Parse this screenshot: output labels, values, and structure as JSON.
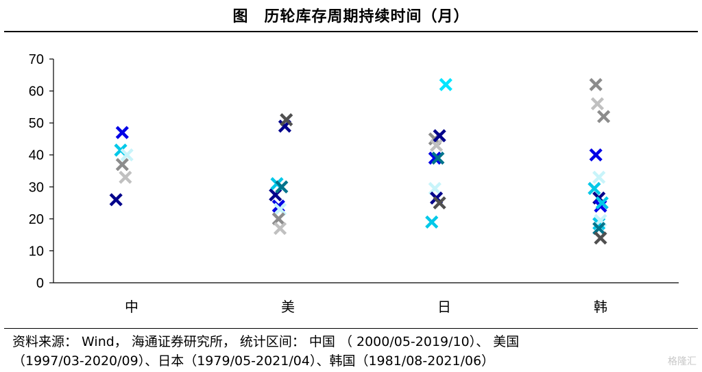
{
  "title": "图　历轮库存周期持续时间（月）",
  "source_line1": "资料来源： Wind， 海通证券研究所， 统计区间： 中国 （ 2000/05-2019/10）、 美国",
  "source_line2": "（1997/03-2020/09）、日本（1979/05-2021/04）、韩国（1981/08-2021/06）",
  "watermark": "格隆汇",
  "chart_data": {
    "type": "scatter",
    "title": "图　历轮库存周期持续时间（月）",
    "xlabel": "",
    "ylabel": "",
    "categories": [
      "中",
      "美",
      "日",
      "韩"
    ],
    "ylim": [
      0,
      70
    ],
    "yticks": [
      0,
      10,
      20,
      30,
      40,
      50,
      60,
      70
    ],
    "grid": false,
    "legend": "none",
    "marker": "x",
    "points": [
      {
        "cat": 0,
        "off": -0.1,
        "y": 26,
        "color": "#00008B"
      },
      {
        "cat": 0,
        "off": -0.06,
        "y": 47,
        "color": "#0000E6"
      },
      {
        "cat": 0,
        "off": -0.07,
        "y": 41.5,
        "color": "#00C8E8"
      },
      {
        "cat": 0,
        "off": -0.03,
        "y": 40,
        "color": "#C8F4FA"
      },
      {
        "cat": 0,
        "off": -0.06,
        "y": 37,
        "color": "#8C8C8C"
      },
      {
        "cat": 0,
        "off": -0.04,
        "y": 33,
        "color": "#C0C0C0"
      },
      {
        "cat": 1,
        "off": -0.08,
        "y": 27.5,
        "color": "#00008B"
      },
      {
        "cat": 1,
        "off": -0.06,
        "y": 24,
        "color": "#0000E6"
      },
      {
        "cat": 1,
        "off": -0.07,
        "y": 31,
        "color": "#00C8E8"
      },
      {
        "cat": 1,
        "off": -0.04,
        "y": 30,
        "color": "#00738C"
      },
      {
        "cat": 1,
        "off": -0.05,
        "y": 23,
        "color": "#C8F4FA"
      },
      {
        "cat": 1,
        "off": -0.06,
        "y": 20,
        "color": "#8C8C8C"
      },
      {
        "cat": 1,
        "off": -0.05,
        "y": 17,
        "color": "#C0C0C0"
      },
      {
        "cat": 1,
        "off": -0.02,
        "y": 49,
        "color": "#00008B"
      },
      {
        "cat": 1,
        "off": -0.01,
        "y": 51,
        "color": "#505050"
      },
      {
        "cat": 2,
        "off": -0.08,
        "y": 19,
        "color": "#00C8E8"
      },
      {
        "cat": 2,
        "off": -0.06,
        "y": 39,
        "color": "#0000E6"
      },
      {
        "cat": 2,
        "off": -0.06,
        "y": 29.5,
        "color": "#C8F4FA"
      },
      {
        "cat": 2,
        "off": -0.05,
        "y": 26.5,
        "color": "#00008B"
      },
      {
        "cat": 2,
        "off": -0.06,
        "y": 45,
        "color": "#8C8C8C"
      },
      {
        "cat": 2,
        "off": -0.05,
        "y": 43,
        "color": "#C0C0C0"
      },
      {
        "cat": 2,
        "off": -0.03,
        "y": 46,
        "color": "#00008B"
      },
      {
        "cat": 2,
        "off": -0.04,
        "y": 39,
        "color": "#00738C"
      },
      {
        "cat": 2,
        "off": -0.03,
        "y": 25,
        "color": "#505050"
      },
      {
        "cat": 2,
        "off": 0.01,
        "y": 62,
        "color": "#00E5FF"
      },
      {
        "cat": 3,
        "off": -0.03,
        "y": 62,
        "color": "#8C8C8C"
      },
      {
        "cat": 3,
        "off": -0.02,
        "y": 56,
        "color": "#C0C0C0"
      },
      {
        "cat": 3,
        "off": 0.02,
        "y": 52,
        "color": "#8C8C8C"
      },
      {
        "cat": 3,
        "off": -0.03,
        "y": 40,
        "color": "#0000E6"
      },
      {
        "cat": 3,
        "off": -0.01,
        "y": 33,
        "color": "#C8F4FA"
      },
      {
        "cat": 3,
        "off": -0.04,
        "y": 29.5,
        "color": "#00C8E8"
      },
      {
        "cat": 3,
        "off": -0.01,
        "y": 26.5,
        "color": "#00008B"
      },
      {
        "cat": 3,
        "off": 0.0,
        "y": 24,
        "color": "#0000E6"
      },
      {
        "cat": 3,
        "off": 0.01,
        "y": 25,
        "color": "#00C8E8"
      },
      {
        "cat": 3,
        "off": -0.01,
        "y": 18.5,
        "color": "#00C8E8"
      },
      {
        "cat": 3,
        "off": 0.0,
        "y": 19.5,
        "color": "#C8F4FA"
      },
      {
        "cat": 3,
        "off": -0.01,
        "y": 17,
        "color": "#00738C"
      },
      {
        "cat": 3,
        "off": 0.0,
        "y": 14,
        "color": "#505050"
      }
    ]
  }
}
